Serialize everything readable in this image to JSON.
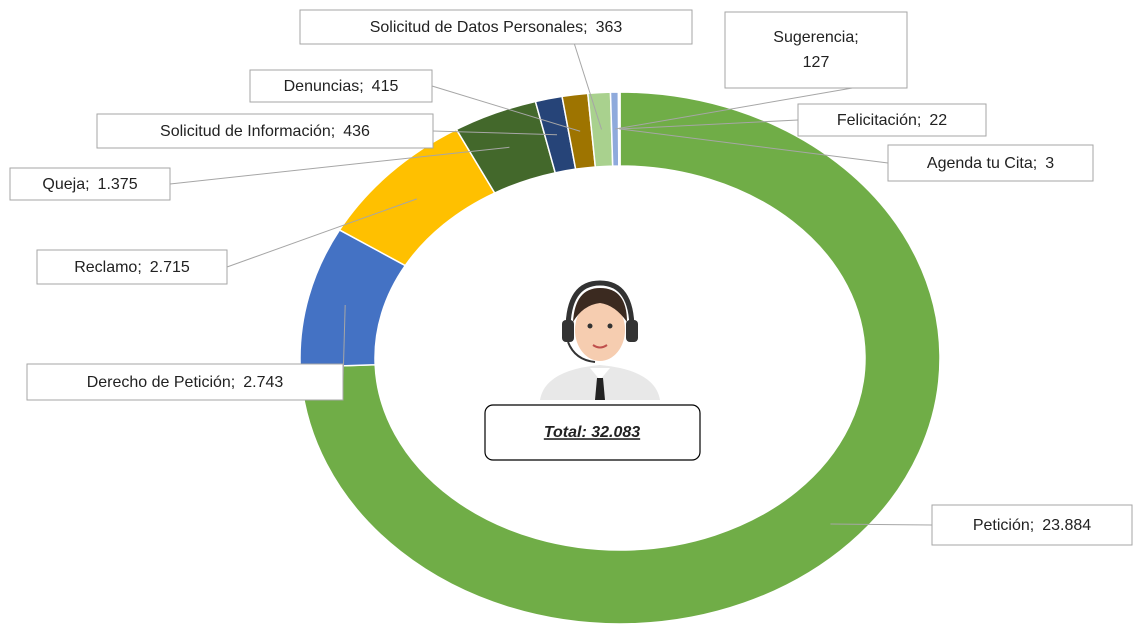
{
  "chart_data": {
    "type": "donut",
    "categories": [
      "Petición;",
      "Derecho de Petición;",
      "Reclamo;",
      "Queja;",
      "Solicitud de Información;",
      "Denuncias;",
      "Solicitud de Datos Personales;",
      "Sugerencia;",
      "Felicitación;",
      "Agenda tu Cita;"
    ],
    "values": [
      23884,
      2743,
      2715,
      1375,
      436,
      415,
      363,
      127,
      22,
      3
    ],
    "value_labels": [
      "23.884",
      "2.743",
      "2.715",
      "1.375",
      "436",
      "415",
      "363",
      "127",
      "22",
      "3"
    ],
    "colors": [
      "#70ad47",
      "#4472c4",
      "#ffc000",
      "#43682b",
      "#264478",
      "#9e7400",
      "#a9d18e",
      "#8faadc",
      "#c5e0b4",
      "#2f5597"
    ],
    "center_label": "Total: 32.083"
  }
}
